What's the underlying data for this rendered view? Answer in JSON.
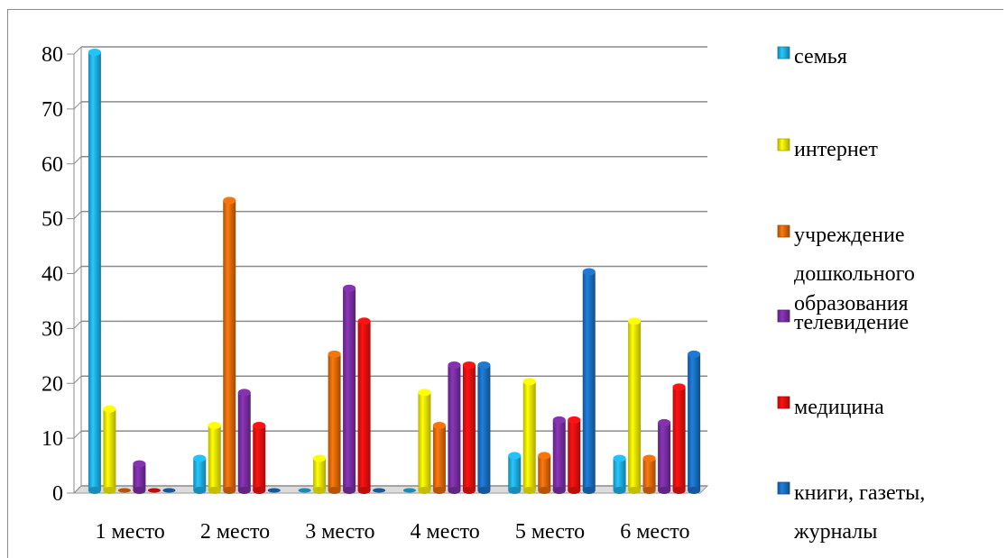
{
  "chart_data": {
    "type": "bar",
    "title": "",
    "xlabel": "",
    "ylabel": "",
    "ylim": [
      0,
      80
    ],
    "yticks": [
      0,
      10,
      20,
      30,
      40,
      50,
      60,
      70,
      80
    ],
    "grid": true,
    "legend_position": "right",
    "categories": [
      "1 место",
      "2 место",
      "3 место",
      "4 место",
      "5 место",
      "6 место"
    ],
    "series": [
      {
        "name": "семья",
        "color": "#1fb0e8",
        "values": [
          80,
          6,
          0,
          0,
          6.5,
          6
        ]
      },
      {
        "name": "интернет",
        "color": "#f5f000",
        "values": [
          15,
          12,
          6,
          18,
          20,
          31
        ]
      },
      {
        "name": "учреждение дошкольного образования",
        "color": "#e26a0a",
        "values": [
          0,
          53,
          25,
          12,
          6.5,
          6
        ]
      },
      {
        "name": "телевидение",
        "color": "#7a2ea3",
        "values": [
          5,
          18,
          37,
          23,
          13,
          12.5
        ]
      },
      {
        "name": "медицина",
        "color": "#ee1010",
        "values": [
          0,
          12,
          31,
          23,
          13,
          19
        ]
      },
      {
        "name": "книги, газеты, журналы",
        "color": "#1a6fc2",
        "values": [
          0,
          0,
          0,
          23,
          40,
          25
        ]
      }
    ]
  }
}
